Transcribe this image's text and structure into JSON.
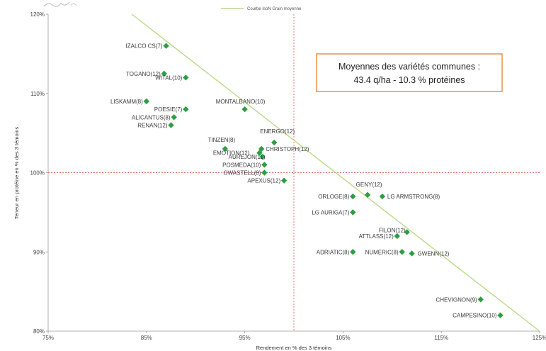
{
  "chart_data": {
    "type": "scatter",
    "title": "",
    "xlabel": "Rendement en % des 3 témoins",
    "ylabel": "Teneur en protéine en % des 3 témoins",
    "xlim": [
      75,
      125
    ],
    "ylim": [
      80,
      120
    ],
    "x_ticks": [
      75,
      85,
      95,
      105,
      115,
      125
    ],
    "y_ticks": [
      80,
      90,
      100,
      110,
      120
    ],
    "x_tick_labels": [
      "75%",
      "85%",
      "95%",
      "105%",
      "115%",
      "125%"
    ],
    "y_tick_labels": [
      "80%",
      "90%",
      "100%",
      "110%",
      "120%"
    ],
    "grid": false,
    "reference_lines": {
      "x": 100,
      "y": 100,
      "color": "#e06a6a"
    },
    "trend_line": {
      "name": "Courbe IsoN Grain moyenne",
      "color": "#b8d98a",
      "x": [
        83.5,
        125
      ],
      "y": [
        120,
        80
      ]
    },
    "legend_position": "top",
    "marker_color": "#2e9e44",
    "annotation": {
      "line1": "Moyennes des variétés communes :",
      "line2": "43.4 q/ha  -  10.3 % protéines",
      "border_color": "#e8883a"
    },
    "points": [
      {
        "label": "IZALCO CS(7)",
        "x": 87.0,
        "y": 116.0
      },
      {
        "label": "TOGANO(12)",
        "x": 86.8,
        "y": 112.5
      },
      {
        "label": "WITAL(10)",
        "x": 89.0,
        "y": 112.0
      },
      {
        "label": "LISKAMM(8)",
        "x": 85.0,
        "y": 109.0
      },
      {
        "label": "POESIE(7)",
        "x": 89.0,
        "y": 108.0
      },
      {
        "label": "ALICANTUS(8)",
        "x": 87.8,
        "y": 107.0
      },
      {
        "label": "RENAN(12)",
        "x": 87.5,
        "y": 106.0
      },
      {
        "label": "MONTALBANO(10)",
        "x": 95.0,
        "y": 108.0
      },
      {
        "label": "ENERGO(12)",
        "x": 98.0,
        "y": 103.8
      },
      {
        "label": "CHRISTOPH(12)",
        "x": 96.7,
        "y": 103.0
      },
      {
        "label": "TINZEN(8)",
        "x": 93.0,
        "y": 103.0
      },
      {
        "label": "EMOTION(12)",
        "x": 96.5,
        "y": 102.5
      },
      {
        "label": "AUREJON(11)",
        "x": 96.8,
        "y": 102.0
      },
      {
        "label": "POSMEDA(10)",
        "x": 97.0,
        "y": 101.0
      },
      {
        "label": "GWASTELL(8)",
        "x": 97.0,
        "y": 100.0
      },
      {
        "label": "APEXUS(12)",
        "x": 99.0,
        "y": 99.0
      },
      {
        "label": "GENY(12)",
        "x": 107.5,
        "y": 97.2
      },
      {
        "label": "ORLOGE(8)",
        "x": 106.0,
        "y": 97.0
      },
      {
        "label": "LG ARMSTRONG(8)",
        "x": 109.0,
        "y": 97.0
      },
      {
        "label": "LG AURIGA(7)",
        "x": 106.0,
        "y": 95.0
      },
      {
        "label": "FILON(12)",
        "x": 111.5,
        "y": 92.5
      },
      {
        "label": "ATTLASS(12)",
        "x": 110.5,
        "y": 92.0
      },
      {
        "label": "ADRIATIC(8)",
        "x": 106.0,
        "y": 90.0
      },
      {
        "label": "NUMERIC(8)",
        "x": 111.0,
        "y": 90.0
      },
      {
        "label": "GWENN(12)",
        "x": 112.0,
        "y": 89.8
      },
      {
        "label": "CHEVIGNON(9)",
        "x": 119.0,
        "y": 84.0
      },
      {
        "label": "CAMPESINO(10)",
        "x": 121.0,
        "y": 82.0
      }
    ]
  }
}
